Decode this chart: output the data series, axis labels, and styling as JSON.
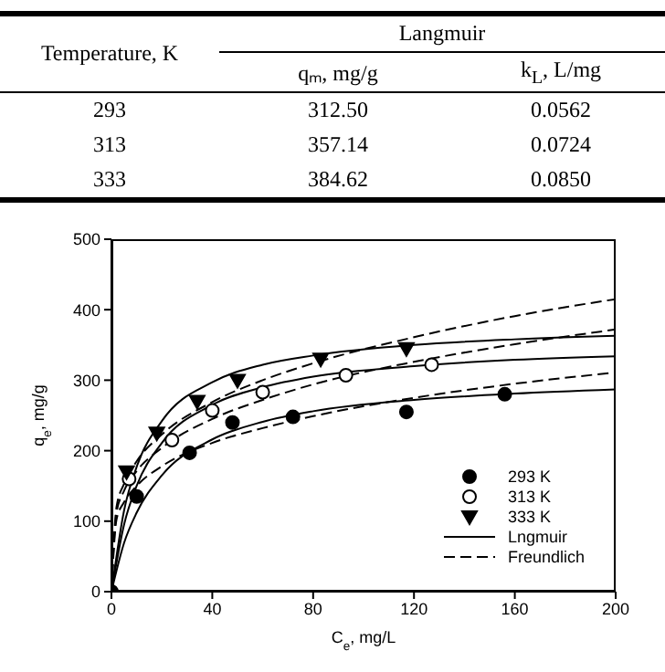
{
  "chart_data": [
    {
      "type": "other",
      "annotations": [
        "Temperature, K",
        "Langmuir",
        "qₘ, mg/g",
        "k$_{L}$, L/mg",
        "293",
        "312.50",
        "0.0562",
        "313",
        "357.14",
        "0.0724",
        "333",
        "384.62",
        "0.0850"
      ]
    },
    {
      "type": "scatter",
      "xlabel": "C$_{e}$, mg/L",
      "ylabel": "q$_{e}$, mg/g",
      "xlim": [
        0,
        200
      ],
      "xticks": [
        0,
        40,
        80,
        120,
        160,
        200
      ],
      "ylim": [
        0,
        500
      ],
      "yticks": [
        0,
        100,
        200,
        300,
        400,
        500
      ],
      "grid": false,
      "legend": "bottom right",
      "series": [
        {
          "name": "293 K",
          "type": "scatter",
          "marker": "circle",
          "color": "#000000",
          "x": [
            0,
            10,
            31,
            48,
            72,
            117,
            156
          ],
          "values": [
            0,
            135,
            197,
            240,
            248,
            255,
            280
          ]
        },
        {
          "name": "313 K",
          "type": "scatter",
          "marker": "circle",
          "color": "#ffffff",
          "x": [
            7,
            24,
            40,
            60,
            93,
            127
          ],
          "values": [
            160,
            215,
            257,
            283,
            307,
            322
          ]
        },
        {
          "name": "333 K",
          "type": "scatter",
          "marker": "triangle",
          "color": "#000000",
          "x": [
            6,
            18,
            34,
            50,
            83,
            117
          ],
          "values": [
            170,
            225,
            270,
            300,
            330,
            345
          ]
        },
        {
          "name": "Lngmuir",
          "type": "line",
          "line_style": "solid",
          "color": "#000000",
          "x": [
            0,
            5,
            10,
            20,
            40,
            60,
            80,
            120,
            160,
            200
          ],
          "values": [
            0,
            69,
            112,
            165,
            216,
            241,
            256,
            272,
            281,
            287
          ]
        },
        {
          "type": "line",
          "line_style": "solid",
          "color": "#000000",
          "x": [
            0,
            5,
            10,
            20,
            40,
            60,
            80,
            120,
            160,
            200
          ],
          "values": [
            0,
            95,
            150,
            211,
            265,
            290,
            305,
            320,
            329,
            334
          ]
        },
        {
          "type": "line",
          "line_style": "solid",
          "color": "#000000",
          "x": [
            0,
            5,
            10,
            20,
            40,
            60,
            80,
            120,
            160,
            200
          ],
          "values": [
            0,
            115,
            177,
            242,
            297,
            322,
            335,
            350,
            358,
            363
          ]
        },
        {
          "name": "Freundlich",
          "type": "line",
          "line_style": "dashed",
          "color": "#000000",
          "x": [
            0,
            2,
            5,
            10,
            20,
            40,
            60,
            80,
            120,
            160,
            200
          ],
          "values": [
            0,
            102,
            127,
            150,
            178,
            211,
            232,
            249,
            275,
            295,
            311
          ]
        },
        {
          "type": "line",
          "line_style": "dashed",
          "color": "#000000",
          "x": [
            0,
            2,
            5,
            10,
            20,
            40,
            60,
            80,
            120,
            160,
            200
          ],
          "values": [
            0,
            112,
            143,
            171,
            204,
            245,
            272,
            294,
            326,
            351,
            372
          ]
        },
        {
          "type": "line",
          "line_style": "dashed",
          "color": "#000000",
          "x": [
            0,
            2,
            5,
            10,
            20,
            40,
            60,
            80,
            120,
            160,
            200
          ],
          "values": [
            0,
            120,
            153,
            185,
            223,
            269,
            300,
            324,
            361,
            391,
            415
          ]
        }
      ]
    }
  ]
}
